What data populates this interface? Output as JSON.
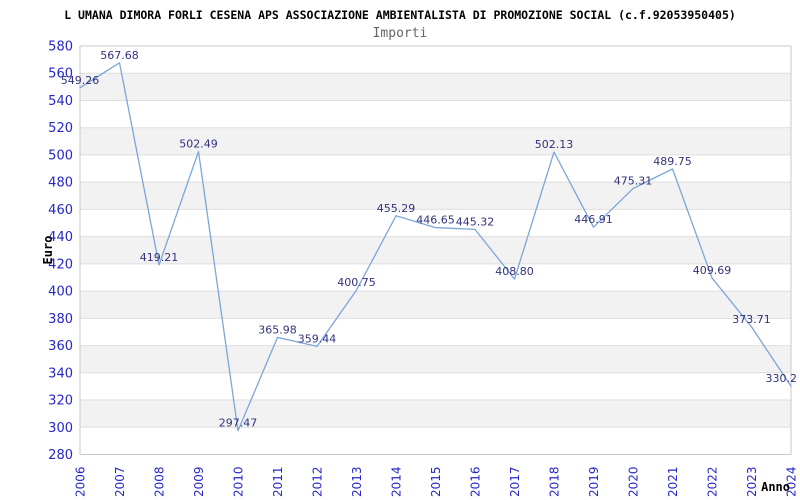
{
  "chart_data": {
    "type": "line",
    "title": "L UMANA DIMORA FORLI CESENA APS ASSOCIAZIONE AMBIENTALISTA DI PROMOZIONE SOCIAL (c.f.92053950405)",
    "subtitle": "Importi",
    "xlabel": "Anno",
    "ylabel": "Euro",
    "categories": [
      "2006",
      "2007",
      "2008",
      "2009",
      "2010",
      "2011",
      "2012",
      "2013",
      "2014",
      "2015",
      "2016",
      "2017",
      "2018",
      "2019",
      "2020",
      "2021",
      "2022",
      "2023",
      "2024"
    ],
    "series": [
      {
        "name": "Importi",
        "values": [
          549.26,
          567.68,
          419.21,
          502.49,
          297.47,
          365.98,
          359.44,
          400.75,
          455.29,
          446.65,
          445.32,
          408.8,
          502.13,
          446.91,
          475.31,
          489.75,
          409.69,
          373.71,
          330.2
        ],
        "value_labels": [
          "549.26",
          "567.68",
          "419.21",
          "502.49",
          "297.47",
          "365.98",
          "359.44",
          "400.75",
          "455.29",
          "446.65",
          "445.32",
          "408.80",
          "502.13",
          "446.91",
          "475.31",
          "489.75",
          "409.69",
          "373.71",
          "330.2"
        ]
      }
    ],
    "ylim": [
      280,
      580
    ],
    "ytick_step": 20,
    "xtick_rotation": -90,
    "grid": "horizontal",
    "bands": "alternating-horizontal",
    "legend_position": "none",
    "colors": {
      "line": "#7aa7d8",
      "tick_label": "#2626cb",
      "value_label": "#32327d",
      "band": "#f2f2f2",
      "grid": "#dedede",
      "border": "#c9c9c9",
      "title": "#000000",
      "subtitle": "#666666"
    }
  }
}
